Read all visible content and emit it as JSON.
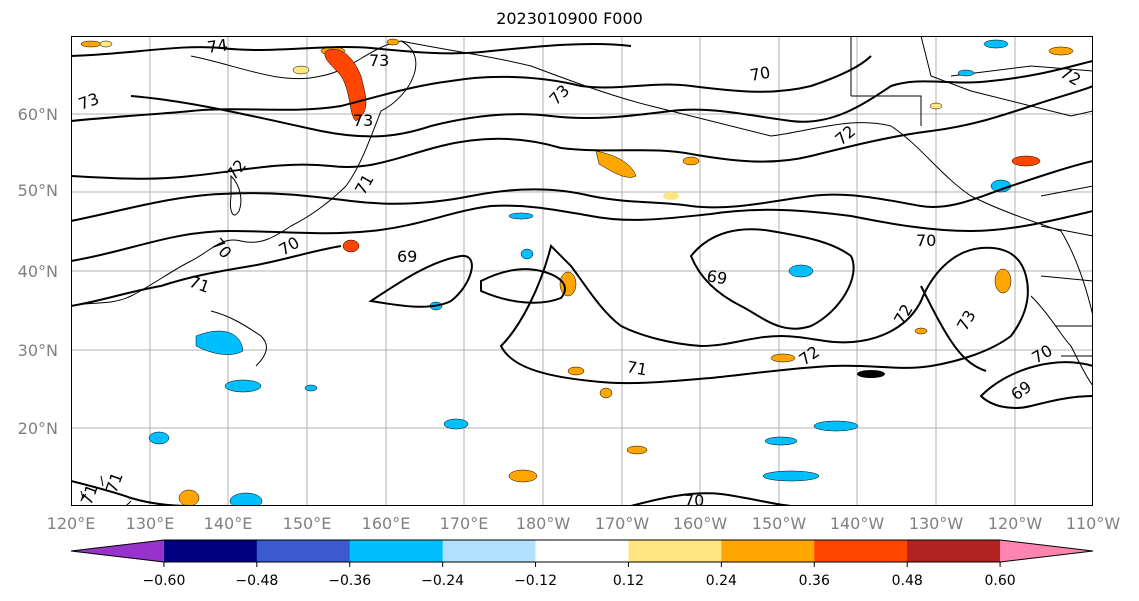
{
  "title": "2023010900 F000",
  "lat_labels": [
    "60°N",
    "50°N",
    "40°N",
    "30°N",
    "20°N"
  ],
  "lon_labels": [
    "120°E",
    "130°E",
    "140°E",
    "150°E",
    "160°E",
    "170°E",
    "180°W",
    "170°W",
    "160°W",
    "150°W",
    "140°W",
    "130°W",
    "120°W",
    "110°W"
  ],
  "contour_labels": [
    "74",
    "73",
    "73",
    "73",
    "73",
    "70",
    "72",
    "72",
    "71",
    "72",
    "70",
    "70",
    "69",
    "71",
    "69",
    "70",
    "72",
    "73",
    "71",
    "72",
    "70",
    "69",
    "71",
    "70",
    "71"
  ],
  "colorbar": {
    "ticks": [
      "−0.60",
      "−0.48",
      "−0.36",
      "−0.24",
      "−0.12",
      "0.12",
      "0.24",
      "0.36",
      "0.48",
      "0.60"
    ],
    "colors": [
      "#9932cc",
      "#000080",
      "#3a5acd",
      "#00bfff",
      "#b0e2ff",
      "#ffffff",
      "#ffe680",
      "#ffa500",
      "#ff4500",
      "#b22222",
      "#ff85b0"
    ]
  }
}
